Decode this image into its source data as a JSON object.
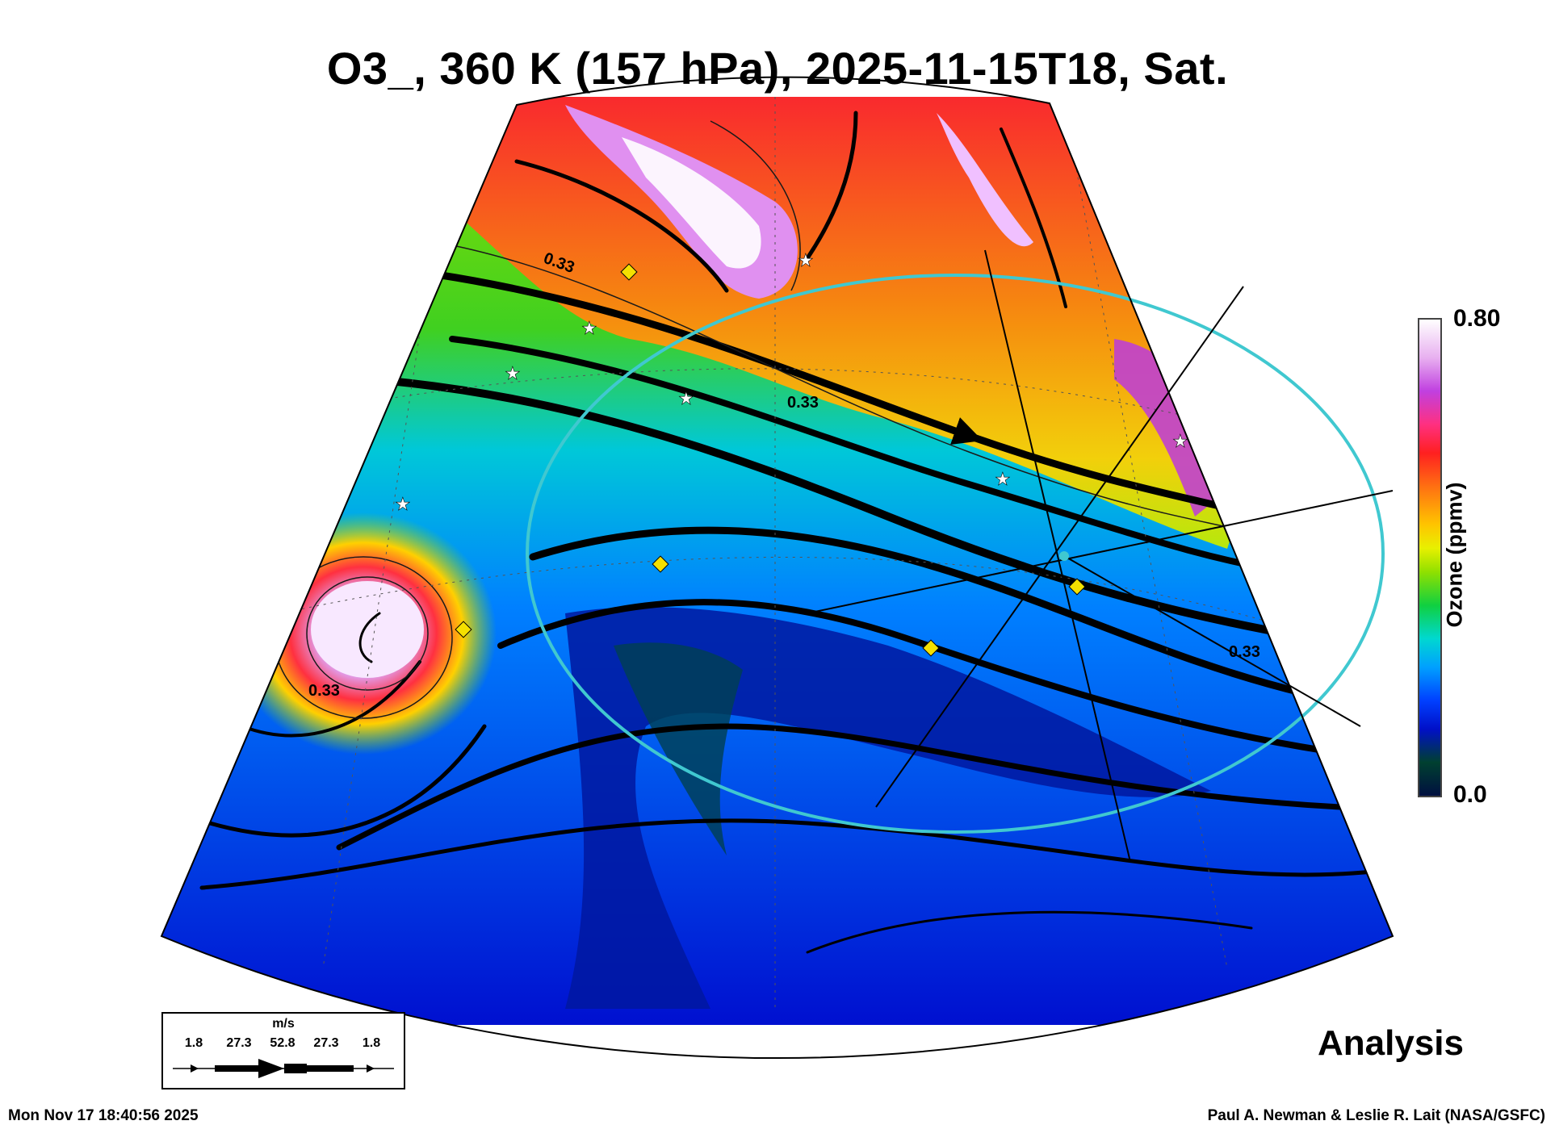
{
  "title": "O3_, 360 K (157 hPa), 2025-11-15T18, Sat.",
  "colorbar": {
    "label": "Ozone (ppmv)",
    "max": "0.80",
    "min": "0.0"
  },
  "contour_label": "0.33",
  "run_type": "Analysis",
  "timestamp": "Mon Nov 17 18:40:56 2025",
  "credit": "Paul A. Newman & Leslie R. Lait (NASA/GSFC)",
  "wind_legend": {
    "unit": "m/s",
    "values": [
      "1.8",
      "27.3",
      "52.8",
      "27.3",
      "1.8"
    ]
  },
  "colors": {
    "frame": "#000000",
    "ring": "#40c8d0",
    "marker": "#f5e000"
  }
}
